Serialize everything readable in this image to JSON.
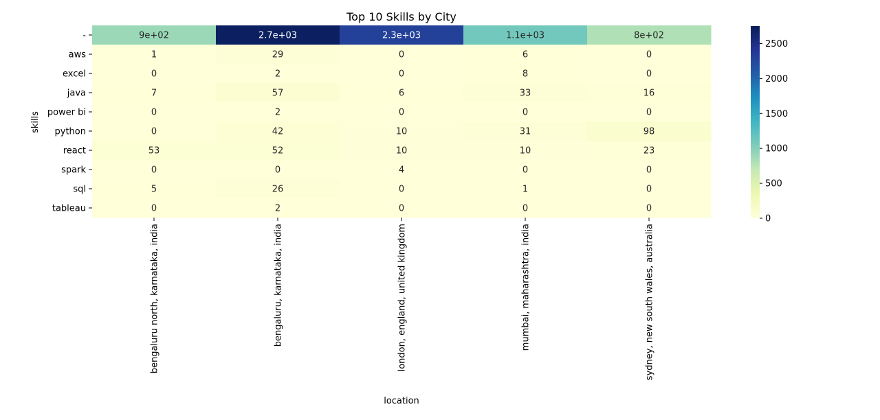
{
  "chart_data": {
    "type": "heatmap",
    "title": "Top 10 Skills by City",
    "xlabel": "location",
    "ylabel": "skills",
    "x_categories": [
      "bengaluru north, karnataka, india",
      "bengaluru, karnataka, india",
      "london, england, united kingdom",
      "mumbai, maharashtra, india",
      "sydney, new south wales, australia"
    ],
    "y_categories": [
      "-",
      "aws",
      "excel",
      "java",
      "power bi",
      "python",
      "react",
      "spark",
      "sql",
      "tableau"
    ],
    "values": [
      [
        900,
        2700,
        2300,
        1100,
        800
      ],
      [
        1,
        29,
        0,
        6,
        0
      ],
      [
        0,
        2,
        0,
        8,
        0
      ],
      [
        7,
        57,
        6,
        33,
        16
      ],
      [
        0,
        2,
        0,
        0,
        0
      ],
      [
        0,
        42,
        10,
        31,
        98
      ],
      [
        53,
        52,
        10,
        10,
        23
      ],
      [
        0,
        0,
        4,
        0,
        0
      ],
      [
        5,
        26,
        0,
        1,
        0
      ],
      [
        0,
        2,
        0,
        0,
        0
      ]
    ],
    "value_labels": [
      [
        "9e+02",
        "2.7e+03",
        "2.3e+03",
        "1.1e+03",
        "8e+02"
      ],
      [
        "1",
        "29",
        "0",
        "6",
        "0"
      ],
      [
        "0",
        "2",
        "0",
        "8",
        "0"
      ],
      [
        "7",
        "57",
        "6",
        "33",
        "16"
      ],
      [
        "0",
        "2",
        "0",
        "0",
        "0"
      ],
      [
        "0",
        "42",
        "10",
        "31",
        "98"
      ],
      [
        "53",
        "52",
        "10",
        "10",
        "23"
      ],
      [
        "0",
        "0",
        "4",
        "0",
        "0"
      ],
      [
        "5",
        "26",
        "0",
        "1",
        "0"
      ],
      [
        "0",
        "2",
        "0",
        "0",
        "0"
      ]
    ],
    "colormap": "YlGnBu",
    "colorbar": {
      "vmin": 0,
      "vmax": 2750,
      "ticks": [
        0,
        500,
        1000,
        1500,
        2000,
        2500
      ],
      "tick_labels": [
        "0",
        "500",
        "1000",
        "1500",
        "2000",
        "2500"
      ]
    }
  }
}
